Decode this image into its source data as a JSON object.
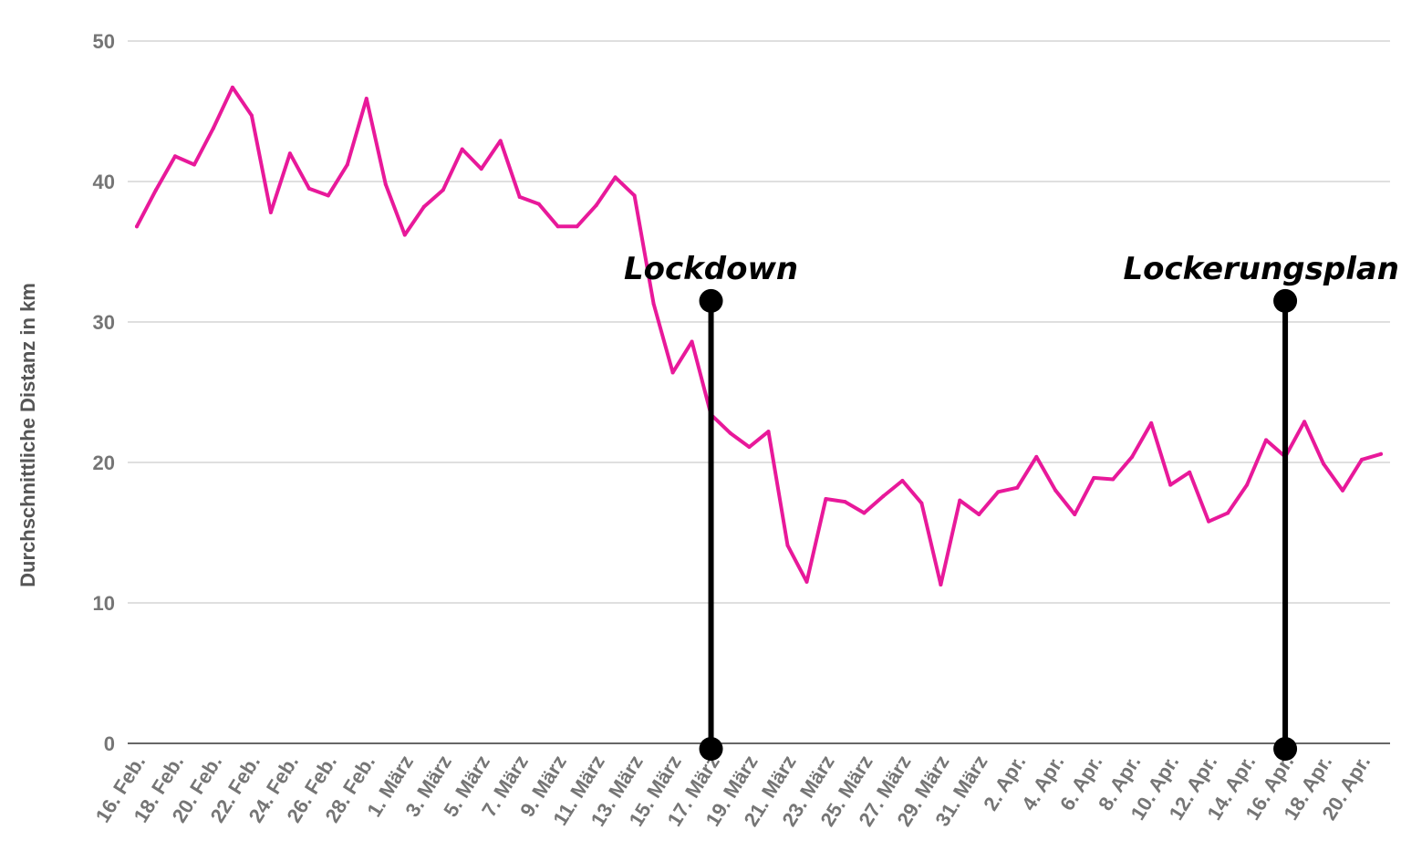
{
  "chart_data": {
    "type": "line",
    "xlabel": "",
    "ylabel": "Durchschnittliche Distanz in km",
    "ylim": [
      0,
      50
    ],
    "yticks": [
      0,
      10,
      20,
      30,
      40,
      50
    ],
    "grid": true,
    "line_color": "#e8199a",
    "x": [
      "16. Feb.",
      "17. Feb.",
      "18. Feb.",
      "19. Feb.",
      "20. Feb.",
      "21. Feb.",
      "22. Feb.",
      "23. Feb.",
      "24. Feb.",
      "25. Feb.",
      "26. Feb.",
      "27. Feb.",
      "28. Feb.",
      "29. Feb.",
      "1. März",
      "2. März",
      "3. März",
      "4. März",
      "5. März",
      "6. März",
      "7. März",
      "8. März",
      "9. März",
      "10. März",
      "11. März",
      "12. März",
      "13. März",
      "14. März",
      "15. März",
      "16. März",
      "17. März",
      "18. März",
      "19. März",
      "20. März",
      "21. März",
      "22. März",
      "23. März",
      "24. März",
      "25. März",
      "26. März",
      "27. März",
      "28. März",
      "29. März",
      "30. März",
      "31. März",
      "1. Apr.",
      "2. Apr.",
      "3. Apr.",
      "4. Apr.",
      "5. Apr.",
      "6. Apr.",
      "7. Apr.",
      "8. Apr.",
      "9. Apr.",
      "10. Apr.",
      "11. Apr.",
      "12. Apr.",
      "13. Apr.",
      "14. Apr.",
      "15. Apr.",
      "16. Apr.",
      "17. Apr.",
      "18. Apr.",
      "19. Apr.",
      "20. Apr.",
      "21. Apr."
    ],
    "xtick_labels": [
      "16. Feb.",
      "18. Feb.",
      "20. Feb.",
      "22. Feb.",
      "24. Feb.",
      "26. Feb.",
      "28. Feb.",
      "1. März",
      "3. März",
      "5. März",
      "7. März",
      "9. März",
      "11. März",
      "13. März",
      "15. März",
      "17. März",
      "19. März",
      "21. März",
      "23. März",
      "25. März",
      "27. März",
      "29. März",
      "31. März",
      "2. Apr.",
      "4. Apr.",
      "6. Apr.",
      "8. Apr.",
      "10. Apr.",
      "12. Apr.",
      "14. Apr.",
      "16. Apr.",
      "18. Apr.",
      "20. Apr."
    ],
    "series": [
      {
        "values": [
          36.8,
          39.4,
          41.8,
          41.2,
          43.8,
          46.7,
          44.7,
          37.8,
          42.0,
          39.5,
          39.0,
          41.2,
          45.9,
          39.8,
          36.2,
          38.2,
          39.4,
          42.3,
          40.9,
          42.9,
          38.9,
          38.4,
          36.8,
          36.8,
          38.3,
          40.3,
          39.0,
          31.3,
          26.4,
          28.6,
          23.4,
          22.1,
          21.1,
          22.2,
          14.1,
          11.5,
          17.4,
          17.2,
          16.4,
          17.6,
          18.7,
          17.1,
          11.3,
          17.3,
          16.3,
          17.9,
          18.2,
          20.4,
          18.0,
          16.3,
          18.9,
          18.8,
          20.4,
          22.8,
          18.4,
          19.3,
          15.8,
          16.4,
          18.4,
          21.6,
          20.4,
          22.9,
          19.9,
          18.0,
          20.2,
          20.6
        ]
      }
    ],
    "annotations": [
      {
        "label": "Lockdown",
        "x": "17. März",
        "y_top": 31.5,
        "color": "#000000"
      },
      {
        "label": "Lockerungsplan",
        "x": "16. Apr.",
        "y_top": 31.5,
        "color": "#000000"
      }
    ]
  }
}
